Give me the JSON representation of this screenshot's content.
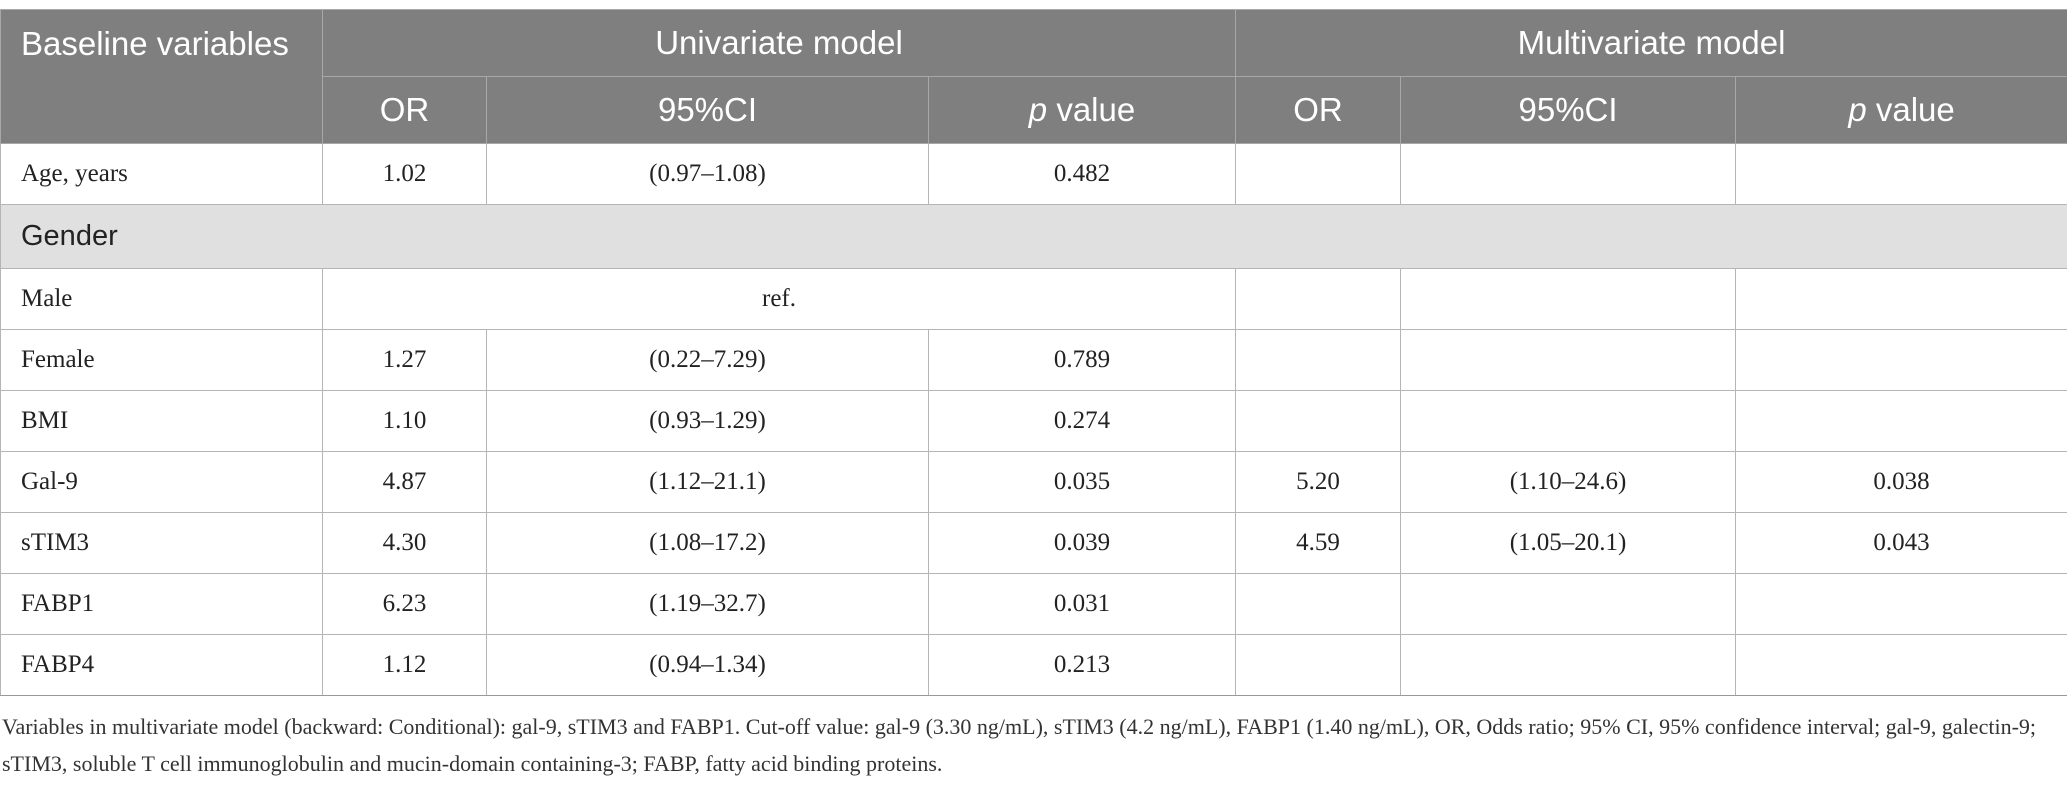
{
  "table": {
    "header": {
      "first": "Baseline variables",
      "groups": [
        "Univariate model",
        "Multivariate model"
      ],
      "columns": [
        {
          "text": "OR"
        },
        {
          "text": "95%CI"
        },
        {
          "em": "p",
          "text": " value"
        },
        {
          "text": "OR"
        },
        {
          "text": "95%CI"
        },
        {
          "em": "p",
          "text": " value"
        }
      ]
    },
    "rows": [
      {
        "label": "Age, years",
        "univariate": [
          "1.02",
          "(0.97–1.08)",
          "0.482"
        ]
      },
      {
        "section": "Gender"
      },
      {
        "label": "Male",
        "reference": "ref."
      },
      {
        "label": "Female",
        "univariate": [
          "1.27",
          "(0.22–7.29)",
          "0.789"
        ]
      },
      {
        "label": "BMI",
        "univariate": [
          "1.10",
          "(0.93–1.29)",
          "0.274"
        ]
      },
      {
        "label": "Gal-9",
        "univariate": [
          "4.87",
          "(1.12–21.1)",
          "0.035"
        ],
        "multivariate": [
          "5.20",
          "(1.10–24.6)",
          "0.038"
        ]
      },
      {
        "label": "sTIM3",
        "univariate": [
          "4.30",
          "(1.08–17.2)",
          "0.039"
        ],
        "multivariate": [
          "4.59",
          "(1.05–20.1)",
          "0.043"
        ]
      },
      {
        "label": "FABP1",
        "univariate": [
          "6.23",
          "(1.19–32.7)",
          "0.031"
        ]
      },
      {
        "label": "FABP4",
        "univariate": [
          "1.12",
          "(0.94–1.34)",
          "0.213"
        ]
      }
    ],
    "footnote": "Variables in multivariate model (backward: Conditional): gal-9, sTIM3 and FABP1. Cut-off value: gal-9 (3.30 ng/mL), sTIM3 (4.2 ng/mL), FABP1 (1.40 ng/mL), OR, Odds ratio; 95% CI, 95% confidence interval; gal-9, galectin-9; sTIM3, soluble T cell immunoglobulin and mucin-domain containing-3; FABP, fatty acid binding proteins."
  }
}
